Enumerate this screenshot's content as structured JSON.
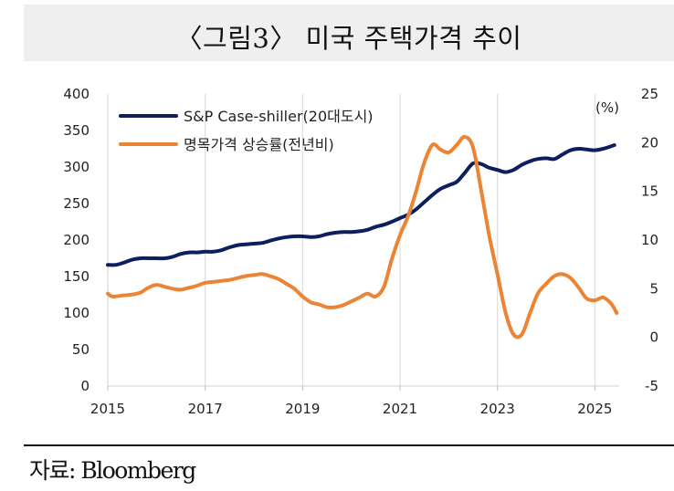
{
  "title": "〈그림3〉 미국 주택가격 추이",
  "source": "자료: Bloomberg",
  "colors": {
    "series1": "#0d1f5c",
    "series2": "#ec8435"
  },
  "chart_data": {
    "type": "line",
    "title": "〈그림3〉 미국 주택가격 추이",
    "x_ticks": [
      "2015",
      "2017",
      "2019",
      "2021",
      "2023",
      "2025"
    ],
    "x_range": [
      2015.0,
      2025.5
    ],
    "y_left": {
      "ticks": [
        "400",
        "350",
        "300",
        "250",
        "200",
        "150",
        "100",
        "50",
        "0"
      ],
      "range": [
        0,
        400
      ]
    },
    "y_right": {
      "ticks": [
        "25",
        "20",
        "15",
        "10",
        "5",
        "0",
        "-5"
      ],
      "range": [
        -5,
        25
      ],
      "unit": "(%)"
    },
    "legend_position": "top-left",
    "series": [
      {
        "name": "S&P Case-shiller(20대도시)",
        "axis": "left",
        "color": "#0d1f5c",
        "points": [
          [
            2015.0,
            166
          ],
          [
            2015.17,
            166
          ],
          [
            2015.33,
            169
          ],
          [
            2015.5,
            173
          ],
          [
            2015.67,
            175
          ],
          [
            2015.83,
            175
          ],
          [
            2016.0,
            175
          ],
          [
            2016.17,
            175
          ],
          [
            2016.33,
            177
          ],
          [
            2016.5,
            181
          ],
          [
            2016.67,
            183
          ],
          [
            2016.83,
            183
          ],
          [
            2017.0,
            184
          ],
          [
            2017.17,
            184
          ],
          [
            2017.33,
            186
          ],
          [
            2017.5,
            190
          ],
          [
            2017.67,
            193
          ],
          [
            2017.83,
            194
          ],
          [
            2018.0,
            195
          ],
          [
            2018.17,
            196
          ],
          [
            2018.33,
            199
          ],
          [
            2018.5,
            202
          ],
          [
            2018.67,
            204
          ],
          [
            2018.83,
            205
          ],
          [
            2019.0,
            205
          ],
          [
            2019.17,
            204
          ],
          [
            2019.33,
            205
          ],
          [
            2019.5,
            208
          ],
          [
            2019.67,
            210
          ],
          [
            2019.83,
            211
          ],
          [
            2020.0,
            211
          ],
          [
            2020.17,
            212
          ],
          [
            2020.33,
            214
          ],
          [
            2020.5,
            218
          ],
          [
            2020.67,
            221
          ],
          [
            2020.83,
            225
          ],
          [
            2021.0,
            230
          ],
          [
            2021.17,
            235
          ],
          [
            2021.33,
            242
          ],
          [
            2021.5,
            252
          ],
          [
            2021.67,
            262
          ],
          [
            2021.83,
            270
          ],
          [
            2022.0,
            275
          ],
          [
            2022.17,
            280
          ],
          [
            2022.33,
            292
          ],
          [
            2022.5,
            305
          ],
          [
            2022.67,
            304
          ],
          [
            2022.83,
            299
          ],
          [
            2023.0,
            296
          ],
          [
            2023.17,
            293
          ],
          [
            2023.33,
            296
          ],
          [
            2023.5,
            303
          ],
          [
            2023.67,
            308
          ],
          [
            2023.83,
            311
          ],
          [
            2024.0,
            312
          ],
          [
            2024.17,
            311
          ],
          [
            2024.33,
            317
          ],
          [
            2024.5,
            323
          ],
          [
            2024.67,
            325
          ],
          [
            2024.83,
            324
          ],
          [
            2025.0,
            323
          ],
          [
            2025.17,
            325
          ],
          [
            2025.4,
            330
          ]
        ]
      },
      {
        "name": "명목가격 상승률(전년비)",
        "axis": "right",
        "color": "#ec8435",
        "points": [
          [
            2015.0,
            4.5
          ],
          [
            2015.1,
            4.2
          ],
          [
            2015.3,
            4.3
          ],
          [
            2015.5,
            4.4
          ],
          [
            2015.67,
            4.6
          ],
          [
            2015.83,
            5.1
          ],
          [
            2016.0,
            5.4
          ],
          [
            2016.17,
            5.2
          ],
          [
            2016.33,
            5.0
          ],
          [
            2016.5,
            4.9
          ],
          [
            2016.67,
            5.1
          ],
          [
            2016.83,
            5.3
          ],
          [
            2017.0,
            5.6
          ],
          [
            2017.17,
            5.7
          ],
          [
            2017.33,
            5.8
          ],
          [
            2017.5,
            5.9
          ],
          [
            2017.67,
            6.1
          ],
          [
            2017.83,
            6.3
          ],
          [
            2018.0,
            6.4
          ],
          [
            2018.17,
            6.5
          ],
          [
            2018.33,
            6.3
          ],
          [
            2018.5,
            6.0
          ],
          [
            2018.67,
            5.5
          ],
          [
            2018.83,
            5.0
          ],
          [
            2019.0,
            4.2
          ],
          [
            2019.17,
            3.6
          ],
          [
            2019.33,
            3.4
          ],
          [
            2019.5,
            3.1
          ],
          [
            2019.67,
            3.1
          ],
          [
            2019.83,
            3.3
          ],
          [
            2020.0,
            3.7
          ],
          [
            2020.17,
            4.1
          ],
          [
            2020.33,
            4.5
          ],
          [
            2020.5,
            4.2
          ],
          [
            2020.67,
            5.2
          ],
          [
            2020.83,
            8.0
          ],
          [
            2021.0,
            10.5
          ],
          [
            2021.17,
            12.5
          ],
          [
            2021.33,
            15.0
          ],
          [
            2021.5,
            18.0
          ],
          [
            2021.67,
            19.8
          ],
          [
            2021.83,
            19.3
          ],
          [
            2022.0,
            19.0
          ],
          [
            2022.17,
            19.8
          ],
          [
            2022.33,
            20.6
          ],
          [
            2022.5,
            19.5
          ],
          [
            2022.67,
            15.0
          ],
          [
            2022.83,
            10.5
          ],
          [
            2023.0,
            6.5
          ],
          [
            2023.17,
            2.5
          ],
          [
            2023.33,
            0.3
          ],
          [
            2023.5,
            0.3
          ],
          [
            2023.67,
            2.5
          ],
          [
            2023.83,
            4.5
          ],
          [
            2024.0,
            5.5
          ],
          [
            2024.17,
            6.3
          ],
          [
            2024.33,
            6.5
          ],
          [
            2024.5,
            6.1
          ],
          [
            2024.67,
            5.1
          ],
          [
            2024.83,
            4.0
          ],
          [
            2025.0,
            3.8
          ],
          [
            2025.17,
            4.1
          ],
          [
            2025.33,
            3.5
          ],
          [
            2025.45,
            2.5
          ]
        ]
      }
    ]
  }
}
